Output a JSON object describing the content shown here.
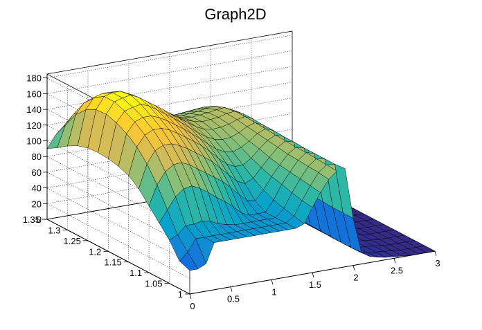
{
  "chart_data": {
    "type": "surface",
    "title": "Graph2D",
    "x_ticks": [
      "0",
      "0.5",
      "1",
      "1.5",
      "2",
      "2.5",
      "3"
    ],
    "y_ticks": [
      "1",
      "1.05",
      "1.1",
      "1.15",
      "1.2",
      "1.25",
      "1.3",
      "1.35"
    ],
    "z_ticks": [
      "0",
      "20",
      "40",
      "60",
      "80",
      "100",
      "120",
      "140",
      "160",
      "180"
    ],
    "xlim": [
      0,
      3
    ],
    "ylim": [
      1,
      1.35
    ],
    "zlim": [
      0,
      185
    ],
    "grid": true,
    "colormap": [
      "#352a87",
      "#0f5cdd",
      "#1481d6",
      "#06a4ca",
      "#2eb7a4",
      "#87bf77",
      "#d1bb59",
      "#fec832",
      "#f9fb0e"
    ],
    "surface_x": [
      0,
      0.1,
      0.2,
      0.3,
      0.4,
      0.5,
      0.6,
      0.7,
      0.8,
      0.9,
      1.0,
      1.1,
      1.2,
      1.3,
      1.4,
      1.5,
      1.6,
      1.7,
      1.8,
      1.9,
      2.0,
      2.1,
      2.2,
      2.3,
      2.4,
      2.5,
      2.6,
      2.7,
      2.8,
      2.9,
      3.0
    ],
    "surface_y": [
      1.0,
      1.025,
      1.05,
      1.075,
      1.1,
      1.125,
      1.15,
      1.175,
      1.2,
      1.225,
      1.25,
      1.275,
      1.3,
      1.325,
      1.35
    ],
    "surface_z": [
      [
        30,
        30,
        35,
        60,
        60,
        60,
        60,
        60,
        60,
        60,
        60,
        60,
        60,
        60,
        64,
        83,
        100,
        115,
        124,
        125,
        60,
        15,
        8,
        5,
        3,
        2,
        1,
        0,
        0,
        0,
        0
      ],
      [
        35,
        45,
        60,
        60,
        60,
        60,
        60,
        60,
        60,
        60,
        60,
        60,
        60,
        60,
        67,
        85,
        102,
        117,
        125,
        124,
        60,
        14,
        7,
        4,
        3,
        2,
        1,
        0,
        0,
        0,
        0
      ],
      [
        55,
        60,
        70,
        70,
        72,
        70,
        65,
        62,
        60,
        60,
        60,
        60,
        60,
        60,
        70,
        88,
        104,
        118,
        126,
        124,
        60,
        14,
        7,
        4,
        3,
        2,
        1,
        0,
        0,
        0,
        0
      ],
      [
        70,
        85,
        100,
        108,
        110,
        105,
        98,
        90,
        83,
        75,
        65,
        60,
        60,
        60,
        74,
        92,
        106,
        119,
        127,
        124,
        61,
        14,
        7,
        4,
        3,
        2,
        1,
        0,
        0,
        0,
        0
      ],
      [
        85,
        110,
        125,
        132,
        133,
        128,
        121,
        114,
        107,
        100,
        90,
        80,
        70,
        68,
        80,
        95,
        108,
        120,
        127,
        124,
        62,
        15,
        7,
        4,
        3,
        2,
        1,
        0,
        0,
        0,
        0
      ],
      [
        100,
        130,
        145,
        150,
        150,
        146,
        140,
        133,
        126,
        118,
        108,
        98,
        88,
        83,
        88,
        100,
        111,
        122,
        128,
        125,
        63,
        15,
        7,
        4,
        3,
        2,
        1,
        0,
        0,
        0,
        0
      ],
      [
        110,
        145,
        158,
        163,
        163,
        159,
        153,
        146,
        139,
        131,
        122,
        112,
        103,
        98,
        98,
        105,
        115,
        124,
        129,
        125,
        64,
        16,
        7,
        4,
        3,
        2,
        1,
        0,
        0,
        0,
        0
      ],
      [
        115,
        155,
        168,
        172,
        172,
        168,
        162,
        155,
        148,
        140,
        132,
        123,
        115,
        110,
        108,
        112,
        118,
        126,
        130,
        126,
        66,
        16,
        8,
        5,
        3,
        2,
        1,
        0,
        0,
        0,
        0
      ],
      [
        118,
        162,
        175,
        178,
        180,
        176,
        169,
        162,
        155,
        147,
        139,
        131,
        124,
        119,
        117,
        118,
        122,
        128,
        131,
        126,
        68,
        17,
        8,
        5,
        3,
        2,
        1,
        0,
        0,
        0,
        0
      ],
      [
        119,
        166,
        180,
        183,
        185,
        180,
        173,
        166,
        159,
        151,
        144,
        137,
        130,
        125,
        123,
        124,
        126,
        130,
        132,
        127,
        70,
        18,
        8,
        5,
        3,
        2,
        1,
        0,
        0,
        0,
        0
      ],
      [
        118,
        165,
        180,
        183,
        183,
        178,
        172,
        165,
        158,
        151,
        144,
        138,
        132,
        128,
        126,
        127,
        128,
        131,
        132,
        127,
        72,
        19,
        9,
        5,
        3,
        2,
        1,
        0,
        0,
        0,
        0
      ],
      [
        114,
        158,
        172,
        175,
        175,
        171,
        165,
        159,
        152,
        146,
        140,
        134,
        129,
        126,
        125,
        126,
        127,
        129,
        130,
        125,
        73,
        20,
        9,
        5,
        3,
        2,
        1,
        0,
        0,
        0,
        0
      ],
      [
        107,
        145,
        158,
        161,
        161,
        158,
        153,
        148,
        142,
        137,
        132,
        127,
        123,
        121,
        120,
        121,
        122,
        124,
        125,
        120,
        72,
        20,
        9,
        5,
        3,
        2,
        1,
        0,
        0,
        0,
        0
      ],
      [
        98,
        125,
        137,
        140,
        141,
        139,
        136,
        132,
        128,
        124,
        120,
        117,
        114,
        113,
        113,
        114,
        115,
        116,
        117,
        112,
        69,
        20,
        9,
        5,
        3,
        2,
        1,
        0,
        0,
        0,
        0
      ],
      [
        90,
        105,
        115,
        118,
        120,
        119,
        117,
        115,
        112,
        110,
        107,
        105,
        104,
        103,
        103,
        104,
        105,
        106,
        107,
        102,
        65,
        19,
        9,
        5,
        3,
        2,
        1,
        0,
        0,
        0,
        0
      ]
    ]
  }
}
